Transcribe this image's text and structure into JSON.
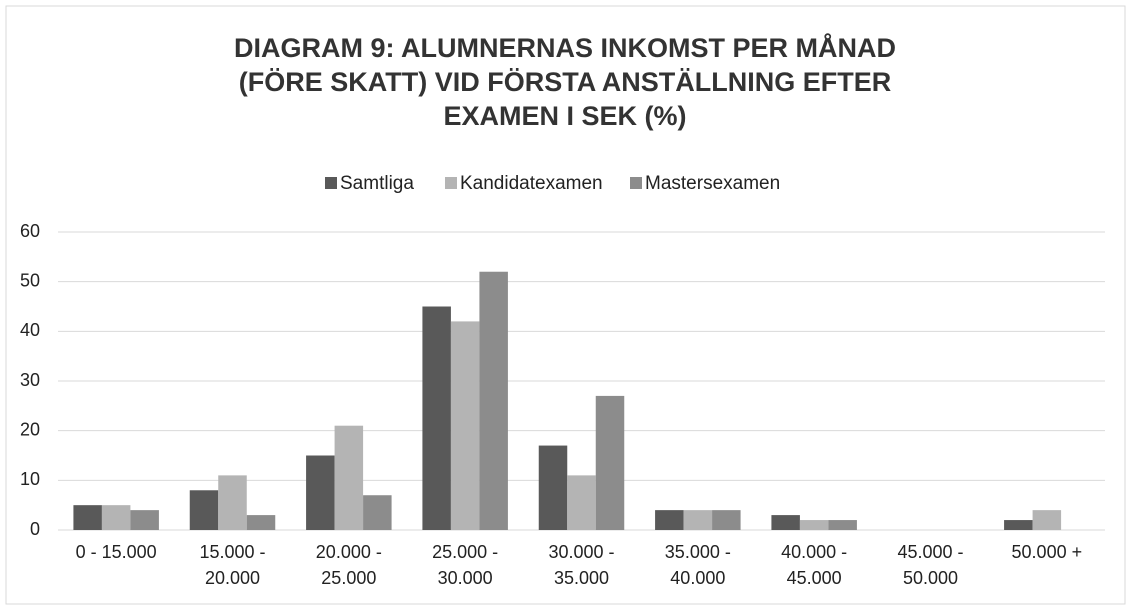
{
  "chart_data": {
    "type": "bar",
    "title": [
      "DIAGRAM 9: ALUMNERNAS INKOMST PER MÅNAD",
      "(FÖRE SKATT) VID FÖRSTA ANSTÄLLNING EFTER",
      "EXAMEN I SEK (%)"
    ],
    "categories": [
      [
        "0 - 15.000"
      ],
      [
        "15.000 -",
        "20.000"
      ],
      [
        "20.000 -",
        "25.000"
      ],
      [
        "25.000 -",
        "30.000"
      ],
      [
        "30.000 -",
        "35.000"
      ],
      [
        "35.000 -",
        "40.000"
      ],
      [
        "40.000 -",
        "45.000"
      ],
      [
        "45.000 -",
        "50.000"
      ],
      [
        "50.000 +"
      ]
    ],
    "series": [
      {
        "name": "Samtliga",
        "color": "#595959",
        "values": [
          5,
          8,
          15,
          45,
          17,
          4,
          3,
          0,
          2
        ]
      },
      {
        "name": "Kandidatexamen",
        "color": "#b4b4b4",
        "values": [
          5,
          11,
          21,
          42,
          11,
          4,
          2,
          0,
          4
        ]
      },
      {
        "name": "Mastersexamen",
        "color": "#8c8c8c",
        "values": [
          4,
          3,
          7,
          52,
          27,
          4,
          2,
          0,
          0
        ]
      }
    ],
    "ylim": [
      0,
      60
    ],
    "yticks": [
      0,
      10,
      20,
      30,
      40,
      50,
      60
    ],
    "grid": true,
    "legend": "top"
  }
}
